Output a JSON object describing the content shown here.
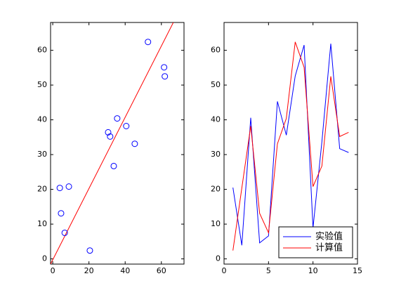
{
  "chart_data": [
    {
      "type": "scatter",
      "x": [
        20.5,
        3.9,
        40.6,
        4.6,
        6.6,
        45.3,
        35.6,
        52.6,
        61.5,
        8.9,
        33.7,
        61.9,
        31.7,
        30.6
      ],
      "values": [
        2.4,
        20.4,
        38.2,
        13.1,
        7.5,
        33.1,
        40.4,
        62.4,
        55.1,
        20.8,
        26.7,
        52.5,
        35.2,
        36.4
      ],
      "color": "#0000ff",
      "fit_line": {
        "x": [
          -1.2,
          66.6
        ],
        "values": [
          -1.5,
          68
        ],
        "color": "#ff0000"
      },
      "xlim": [
        -1.2,
        72.5
      ],
      "ylim": [
        -1.5,
        68
      ],
      "xticks": [
        0,
        20,
        40,
        60
      ],
      "yticks": [
        0,
        10,
        20,
        30,
        40,
        50,
        60
      ]
    },
    {
      "type": "line",
      "x": [
        1,
        2,
        3,
        4,
        5,
        6,
        7,
        8,
        9,
        10,
        11,
        12,
        13,
        14
      ],
      "series": [
        {
          "name": "实验值",
          "color": "#0000ff",
          "values": [
            20.5,
            3.9,
            40.6,
            4.6,
            6.6,
            45.3,
            35.6,
            52.6,
            61.5,
            8.9,
            33.7,
            61.9,
            31.7,
            30.6
          ]
        },
        {
          "name": "计算值",
          "color": "#ff0000",
          "values": [
            2.4,
            20.4,
            38.2,
            13.1,
            7.5,
            33.1,
            40.4,
            62.4,
            55.1,
            20.8,
            26.7,
            52.5,
            35.2,
            36.4
          ]
        }
      ],
      "xlim": [
        0,
        15
      ],
      "ylim": [
        -1.5,
        68
      ],
      "xticks": [
        0,
        5,
        10,
        15
      ],
      "yticks": [
        0,
        10,
        20,
        30,
        40,
        50,
        60
      ],
      "legend": "lower right"
    }
  ]
}
